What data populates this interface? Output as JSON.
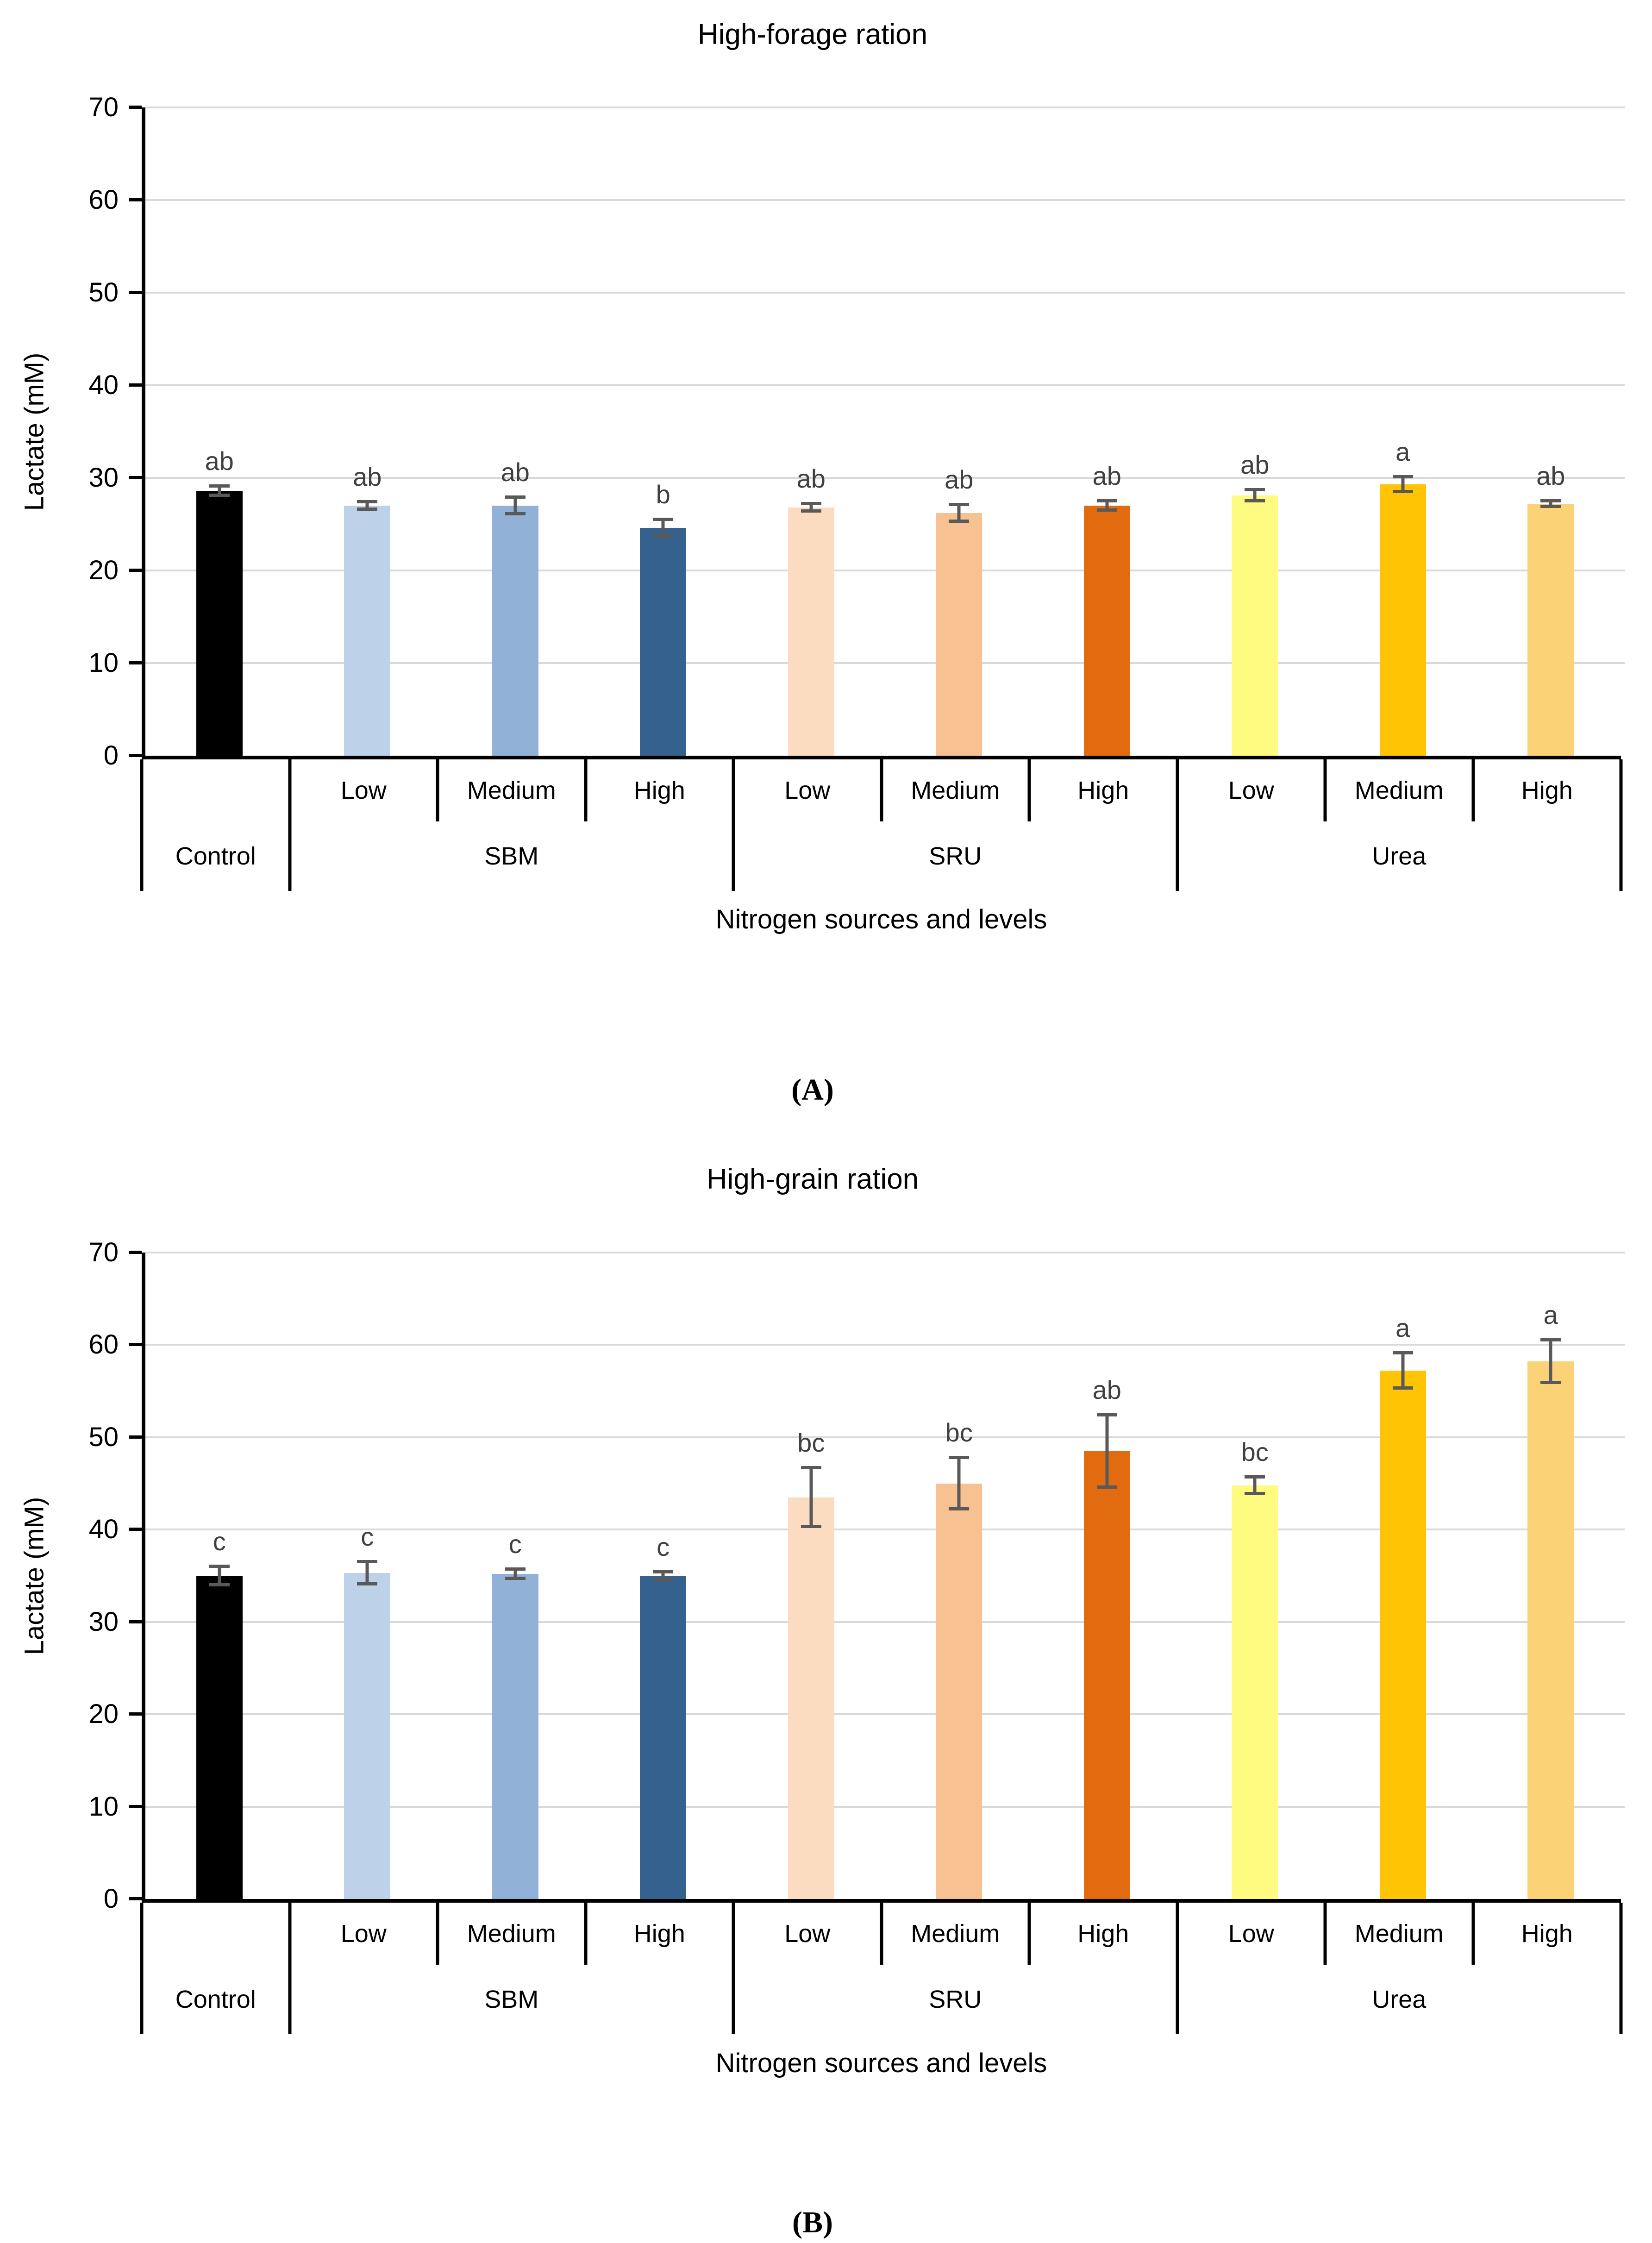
{
  "figure": {
    "ylabel": "Lactate (mM)",
    "xlabel": "Nitrogen sources and levels"
  },
  "chart_data": [
    {
      "type": "bar",
      "panel": "A",
      "title": "High-forage ration",
      "caption": "(A)",
      "xlabel": "Nitrogen sources and levels",
      "ylabel": "Lactate (mM)",
      "ylim": [
        0,
        70
      ],
      "yticks": [
        0,
        10,
        20,
        30,
        40,
        50,
        60,
        70
      ],
      "grid": true,
      "legend": "none",
      "groups": [
        {
          "label": "Control",
          "levels": [
            ""
          ]
        },
        {
          "label": "SBM",
          "levels": [
            "Low",
            "Medium",
            "High"
          ]
        },
        {
          "label": "SRU",
          "levels": [
            "Low",
            "Medium",
            "High"
          ]
        },
        {
          "label": "Urea",
          "levels": [
            "Low",
            "Medium",
            "High"
          ]
        }
      ],
      "bars": [
        {
          "group": "Control",
          "level": "",
          "value": 28.6,
          "error": 0.5,
          "letter": "ab",
          "color": "#000000"
        },
        {
          "group": "SBM",
          "level": "Low",
          "value": 27.0,
          "error": 0.4,
          "letter": "ab",
          "color": "#BDD1E8"
        },
        {
          "group": "SBM",
          "level": "Medium",
          "value": 27.0,
          "error": 0.9,
          "letter": "ab",
          "color": "#92B1D7"
        },
        {
          "group": "SBM",
          "level": "High",
          "value": 24.6,
          "error": 0.9,
          "letter": "b",
          "color": "#35618F"
        },
        {
          "group": "SRU",
          "level": "Low",
          "value": 26.8,
          "error": 0.4,
          "letter": "ab",
          "color": "#FBDCC0"
        },
        {
          "group": "SRU",
          "level": "Medium",
          "value": 26.2,
          "error": 0.9,
          "letter": "ab",
          "color": "#F8C191"
        },
        {
          "group": "SRU",
          "level": "High",
          "value": 27.0,
          "error": 0.5,
          "letter": "ab",
          "color": "#E26B10"
        },
        {
          "group": "Urea",
          "level": "Low",
          "value": 28.1,
          "error": 0.6,
          "letter": "ab",
          "color": "#FEFB80"
        },
        {
          "group": "Urea",
          "level": "Medium",
          "value": 29.3,
          "error": 0.8,
          "letter": "a",
          "color": "#FFC403"
        },
        {
          "group": "Urea",
          "level": "High",
          "value": 27.2,
          "error": 0.3,
          "letter": "ab",
          "color": "#FBD376"
        }
      ]
    },
    {
      "type": "bar",
      "panel": "B",
      "title": "High-grain ration",
      "caption": "(B)",
      "xlabel": "Nitrogen sources and levels",
      "ylabel": "Lactate (mM)",
      "ylim": [
        0,
        70
      ],
      "yticks": [
        0,
        10,
        20,
        30,
        40,
        50,
        60,
        70
      ],
      "grid": true,
      "legend": "none",
      "groups": [
        {
          "label": "Control",
          "levels": [
            ""
          ]
        },
        {
          "label": "SBM",
          "levels": [
            "Low",
            "Medium",
            "High"
          ]
        },
        {
          "label": "SRU",
          "levels": [
            "Low",
            "Medium",
            "High"
          ]
        },
        {
          "label": "Urea",
          "levels": [
            "Low",
            "Medium",
            "High"
          ]
        }
      ],
      "bars": [
        {
          "group": "Control",
          "level": "",
          "value": 35.0,
          "error": 1.0,
          "letter": "c",
          "color": "#000000"
        },
        {
          "group": "SBM",
          "level": "Low",
          "value": 35.3,
          "error": 1.2,
          "letter": "c",
          "color": "#BDD1E8"
        },
        {
          "group": "SBM",
          "level": "Medium",
          "value": 35.2,
          "error": 0.5,
          "letter": "c",
          "color": "#92B1D7"
        },
        {
          "group": "SBM",
          "level": "High",
          "value": 35.0,
          "error": 0.4,
          "letter": "c",
          "color": "#35618F"
        },
        {
          "group": "SRU",
          "level": "Low",
          "value": 43.5,
          "error": 3.2,
          "letter": "bc",
          "color": "#FBDCC0"
        },
        {
          "group": "SRU",
          "level": "Medium",
          "value": 45.0,
          "error": 2.8,
          "letter": "bc",
          "color": "#F8C191"
        },
        {
          "group": "SRU",
          "level": "High",
          "value": 48.5,
          "error": 3.9,
          "letter": "ab",
          "color": "#E26B10"
        },
        {
          "group": "Urea",
          "level": "Low",
          "value": 44.8,
          "error": 0.9,
          "letter": "bc",
          "color": "#FEFB80"
        },
        {
          "group": "Urea",
          "level": "Medium",
          "value": 57.2,
          "error": 1.9,
          "letter": "a",
          "color": "#FFC403"
        },
        {
          "group": "Urea",
          "level": "High",
          "value": 58.2,
          "error": 2.3,
          "letter": "a",
          "color": "#FBD376"
        }
      ]
    }
  ],
  "style": {
    "gridline_color": "#D9D9D9",
    "error_bar_color": "#595959",
    "letter_color": "#404040",
    "axis_color": "#000000"
  }
}
